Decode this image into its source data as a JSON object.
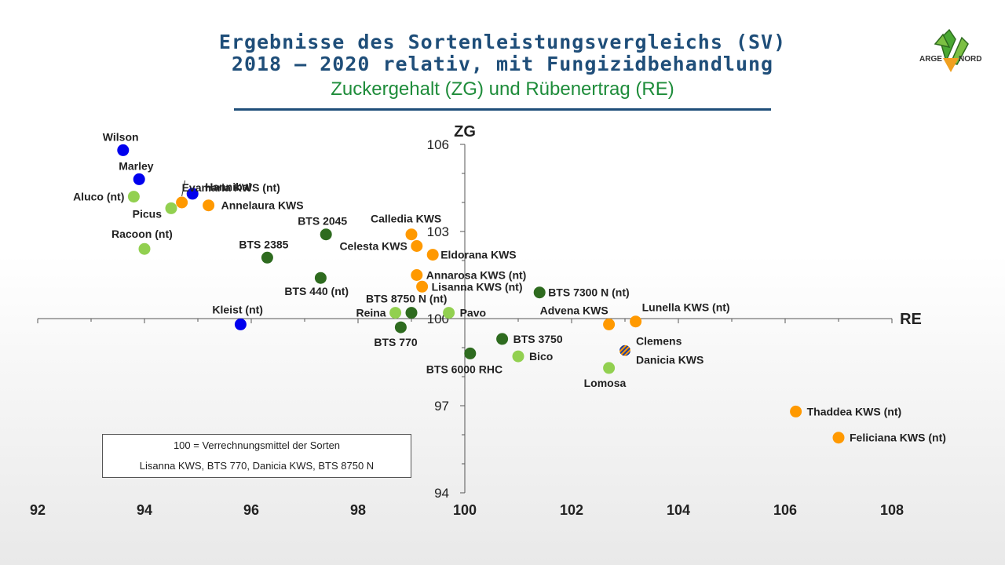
{
  "header": {
    "title_line1": "Ergebnisse des Sortenleistungsvergleichs (SV)",
    "title_line2": "2018 – 2020 relativ, mit Fungizidbehandlung",
    "subtitle": "Zuckergehalt (ZG) und Rübenertrag (RE)"
  },
  "logo": {
    "text_left": "ARGE",
    "text_right": "NORD"
  },
  "legend_box": {
    "line1": "100 = Verrechnungsmittel der Sorten",
    "line2": "Lisanna KWS, BTS 770, Danicia KWS, BTS 8750 N"
  },
  "colors": {
    "blue": "#0000ee",
    "light_green": "#92d050",
    "dark_green": "#2e6b1f",
    "orange": "#ff9900",
    "title": "#1f4e79",
    "subtitle": "#1e8c3a"
  },
  "chart_data": {
    "type": "scatter",
    "xlabel": "RE",
    "ylabel": "ZG",
    "xlim": [
      92,
      108
    ],
    "ylim": [
      94,
      106
    ],
    "x_ticks": [
      92,
      94,
      96,
      98,
      100,
      102,
      104,
      106,
      108
    ],
    "y_ticks": [
      94,
      97,
      100,
      103,
      106
    ],
    "points": [
      {
        "label": "Wilson",
        "x": 93.6,
        "y": 105.8,
        "color": "blue"
      },
      {
        "label": "Marley",
        "x": 93.9,
        "y": 104.8,
        "color": "blue"
      },
      {
        "label": "Aluco (nt)",
        "x": 93.8,
        "y": 104.2,
        "color": "light_green"
      },
      {
        "label": "Hannibal",
        "x": 94.9,
        "y": 104.3,
        "color": "blue"
      },
      {
        "label": "Evamaria KWS (nt)",
        "x": 94.7,
        "y": 104.0,
        "color": "orange"
      },
      {
        "label": "Picus",
        "x": 94.5,
        "y": 103.8,
        "color": "light_green"
      },
      {
        "label": "Annelaura KWS",
        "x": 95.2,
        "y": 103.9,
        "color": "orange"
      },
      {
        "label": "Racoon (nt)",
        "x": 94.0,
        "y": 102.4,
        "color": "light_green"
      },
      {
        "label": "BTS 2385",
        "x": 96.3,
        "y": 102.1,
        "color": "dark_green"
      },
      {
        "label": "BTS 2045",
        "x": 97.4,
        "y": 102.9,
        "color": "dark_green"
      },
      {
        "label": "BTS 440 (nt)",
        "x": 97.3,
        "y": 101.4,
        "color": "dark_green"
      },
      {
        "label": "Kleist (nt)",
        "x": 95.8,
        "y": 99.8,
        "color": "blue"
      },
      {
        "label": "Calledia KWS",
        "x": 99.0,
        "y": 102.9,
        "color": "orange"
      },
      {
        "label": "Celesta KWS",
        "x": 99.1,
        "y": 102.5,
        "color": "orange"
      },
      {
        "label": "Eldorana KWS",
        "x": 99.4,
        "y": 102.2,
        "color": "orange"
      },
      {
        "label": "Annarosa KWS (nt)",
        "x": 99.1,
        "y": 101.5,
        "color": "orange"
      },
      {
        "label": "Lisanna KWS (nt)",
        "x": 99.2,
        "y": 101.1,
        "color": "orange"
      },
      {
        "label": "BTS 8750 N (nt)",
        "x": 99.0,
        "y": 100.2,
        "color": "dark_green"
      },
      {
        "label": "Reina",
        "x": 98.7,
        "y": 100.2,
        "color": "light_green"
      },
      {
        "label": "Pavo",
        "x": 99.7,
        "y": 100.2,
        "color": "light_green"
      },
      {
        "label": "BTS 770",
        "x": 98.8,
        "y": 99.7,
        "color": "dark_green"
      },
      {
        "label": "BTS 7300 N (nt)",
        "x": 101.4,
        "y": 100.9,
        "color": "dark_green"
      },
      {
        "label": "Advena KWS",
        "x": 102.7,
        "y": 99.8,
        "color": "orange"
      },
      {
        "label": "Lunella KWS  (nt)",
        "x": 103.2,
        "y": 99.9,
        "color": "orange"
      },
      {
        "label": "BTS 3750",
        "x": 100.7,
        "y": 99.3,
        "color": "dark_green"
      },
      {
        "label": "BTS 6000 RHC",
        "x": 100.1,
        "y": 98.8,
        "color": "dark_green"
      },
      {
        "label": "Bico",
        "x": 101.0,
        "y": 98.7,
        "color": "light_green"
      },
      {
        "label": "Clemens",
        "x": 103.0,
        "y": 98.9,
        "color": "orange_blue_striped"
      },
      {
        "label": "Danicia KWS",
        "x": 103.0,
        "y": 98.9,
        "color": "orange_blue_striped"
      },
      {
        "label": "Lomosa",
        "x": 102.7,
        "y": 98.3,
        "color": "light_green"
      },
      {
        "label": "Thaddea KWS (nt)",
        "x": 106.2,
        "y": 96.8,
        "color": "orange"
      },
      {
        "label": "Feliciana KWS (nt)",
        "x": 107.0,
        "y": 95.9,
        "color": "orange"
      }
    ]
  }
}
